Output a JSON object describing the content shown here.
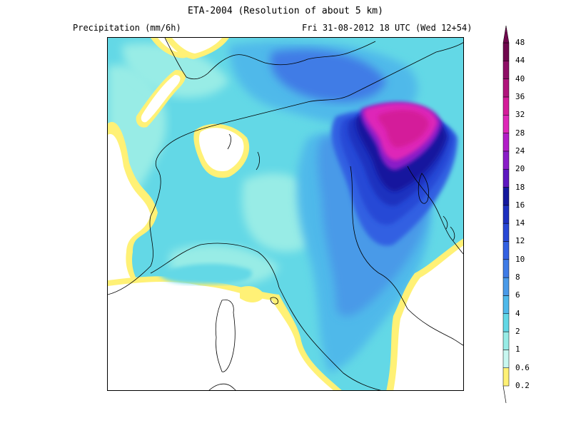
{
  "header": {
    "title": "ETA-2004 (Resolution of about 5 km)",
    "variable": "Precipitation (mm/6h)",
    "valid_time": "Fri 31-08-2012 18 UTC (Wed 12+54)"
  },
  "legend": {
    "levels": [
      "0.2",
      "0.6",
      "1",
      "2",
      "4",
      "6",
      "8",
      "10",
      "12",
      "14",
      "16",
      "18",
      "20",
      "24",
      "28",
      "32",
      "36",
      "40",
      "44",
      "48"
    ],
    "colors": [
      "#fff176",
      "#c8f7f0",
      "#98ece6",
      "#63d8e6",
      "#4fb9ea",
      "#4a9ae8",
      "#3f7be6",
      "#3361e2",
      "#2848d6",
      "#1d30bf",
      "#15199e",
      "#5d18c0",
      "#8a1ec8",
      "#b21ec8",
      "#de28b8",
      "#d41d9a",
      "#b0157c",
      "#8e0f66",
      "#70084e"
    ]
  },
  "map": {
    "background": "#ffffff",
    "coastline_color": "#000000"
  }
}
